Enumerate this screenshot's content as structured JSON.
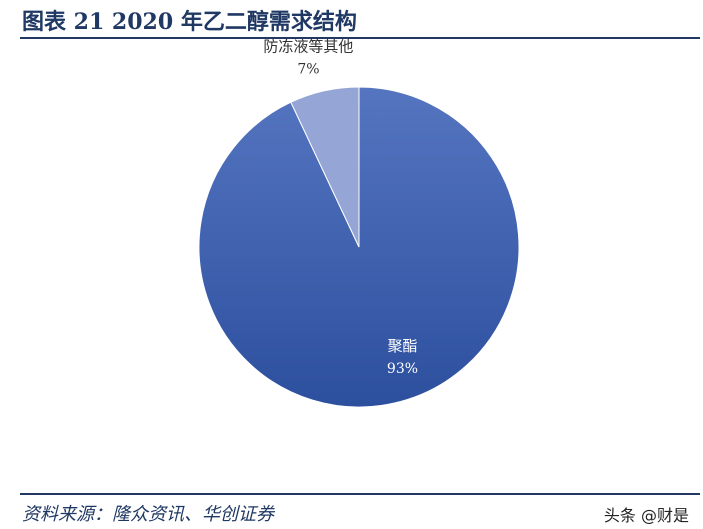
{
  "header": {
    "title": "图表 21  2020 年乙二醇需求结构"
  },
  "footer": {
    "source": "资料来源：隆众资讯、华创证券",
    "watermark": "头条 @财是"
  },
  "chart_data": {
    "type": "pie",
    "title": "",
    "slices": [
      {
        "label": "聚酯",
        "value": 93,
        "value_label": "93%",
        "color": "#3e5fb0"
      },
      {
        "label": "防冻液等其他",
        "value": 7,
        "value_label": "7%",
        "color": "#94a5d6"
      }
    ],
    "legend": "none"
  }
}
